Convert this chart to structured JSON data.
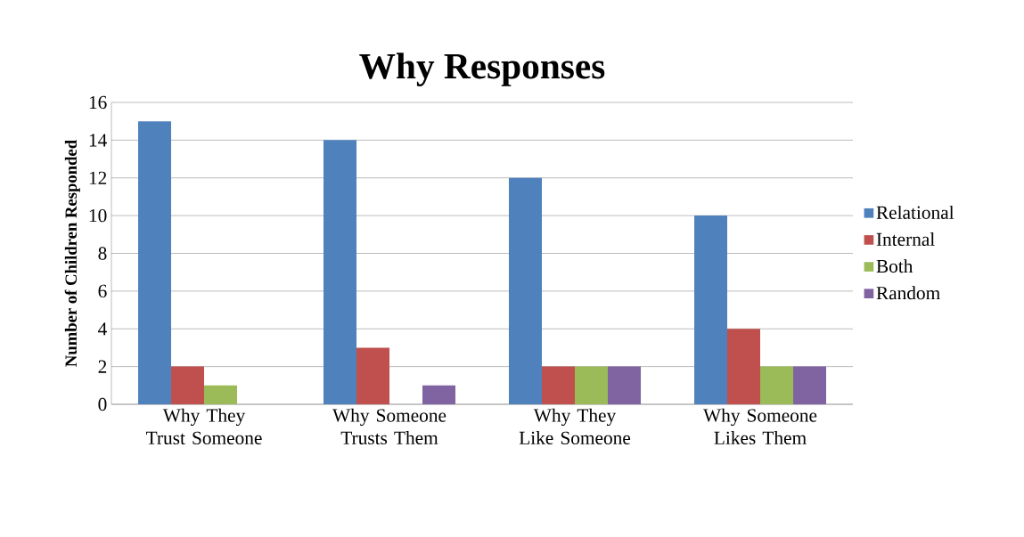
{
  "chart_data": {
    "type": "bar",
    "title": "Why Responses",
    "ylabel": "Number of Children Responded",
    "categories": [
      "Why They Trust Someone",
      "Why Someone Trusts Them",
      "Why They Like Someone",
      "Why Someone Likes Them"
    ],
    "series": [
      {
        "name": "Relational",
        "color": "#4f81bd",
        "values": [
          15,
          14,
          12,
          10
        ]
      },
      {
        "name": "Internal",
        "color": "#c0504d",
        "values": [
          2,
          3,
          2,
          4
        ]
      },
      {
        "name": "Both",
        "color": "#9bbb59",
        "values": [
          1,
          0,
          2,
          2
        ]
      },
      {
        "name": "Random",
        "color": "#8064a2",
        "values": [
          0,
          1,
          2,
          2
        ]
      }
    ],
    "ylim": [
      0,
      16
    ],
    "yticks": [
      0,
      2,
      4,
      6,
      8,
      10,
      12,
      14,
      16
    ],
    "grid": "y",
    "legend": "right"
  }
}
